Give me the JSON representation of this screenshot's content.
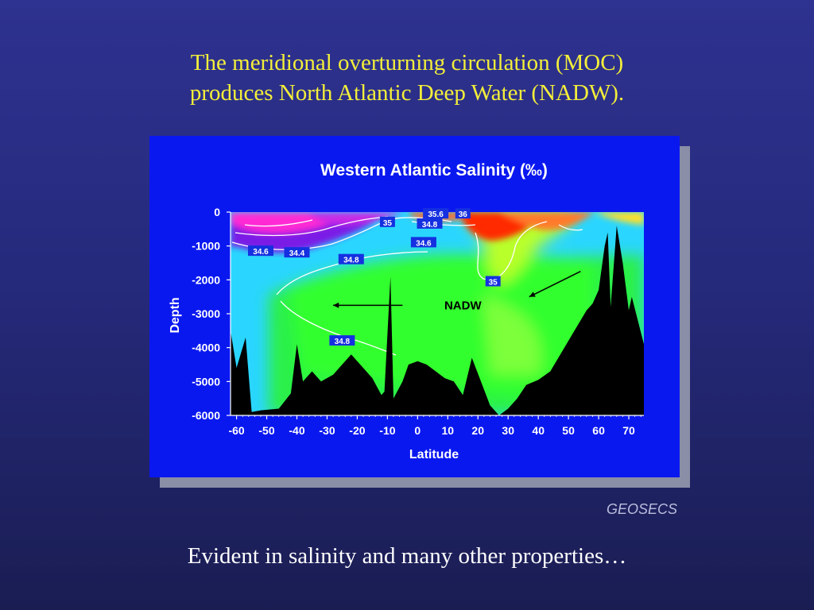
{
  "slide": {
    "title_line1": "The meridional overturning circulation (MOC)",
    "title_line2": "produces North Atlantic Deep Water (NADW).",
    "credit": "GEOSECS",
    "caption": "Evident in salinity and many other properties…"
  },
  "colors": {
    "background": "#2a2e86",
    "title_text": "#f3ee3a",
    "figure_panel": "#0a18f0",
    "seafloor": "#000000",
    "salinity_high": "#ff2a00",
    "salinity_mid": "#2aff2a",
    "salinity_low": "#9b22e6"
  },
  "chart_data": {
    "type": "heatmap",
    "title": "Western Atlantic Salinity (‰)",
    "xlabel": "Latitude",
    "ylabel": "Depth",
    "xlim": [
      -62,
      75
    ],
    "ylim": [
      -6000,
      0
    ],
    "x_ticks": [
      -60,
      -50,
      -40,
      -30,
      -20,
      -10,
      0,
      10,
      20,
      30,
      40,
      50,
      60,
      70
    ],
    "y_ticks": [
      0,
      -1000,
      -2000,
      -3000,
      -4000,
      -5000,
      -6000
    ],
    "grid": false,
    "contour_labels": [
      {
        "value": "35",
        "lat": -10,
        "depth": -300
      },
      {
        "value": "34.8",
        "lat": 4,
        "depth": -350
      },
      {
        "value": "34.6",
        "lat": 2,
        "depth": -900
      },
      {
        "value": "34.6",
        "lat": -52,
        "depth": -1150
      },
      {
        "value": "34.4",
        "lat": -40,
        "depth": -1200
      },
      {
        "value": "34.8",
        "lat": -22,
        "depth": -1400
      },
      {
        "value": "35",
        "lat": 25,
        "depth": -2050
      },
      {
        "value": "34.8",
        "lat": -25,
        "depth": -3800
      },
      {
        "value": "35.6",
        "lat": 6,
        "depth": -50
      },
      {
        "value": "36",
        "lat": 15,
        "depth": -50
      }
    ],
    "annotations": [
      {
        "text": "NADW",
        "lat": 15,
        "depth": -2750
      }
    ],
    "arrows": [
      {
        "from_lat": -5,
        "from_depth": -2750,
        "to_lat": -28,
        "to_depth": -2750
      },
      {
        "from_lat": 54,
        "from_depth": -1750,
        "to_lat": 37,
        "to_depth": -2500
      }
    ],
    "bathymetry": [
      [
        -62,
        -3500
      ],
      [
        -60,
        -4600
      ],
      [
        -57,
        -3700
      ],
      [
        -55,
        -5900
      ],
      [
        -52,
        -5850
      ],
      [
        -46,
        -5800
      ],
      [
        -42,
        -5350
      ],
      [
        -40,
        -3900
      ],
      [
        -38,
        -5000
      ],
      [
        -35,
        -4700
      ],
      [
        -32,
        -5000
      ],
      [
        -28,
        -4800
      ],
      [
        -25,
        -4500
      ],
      [
        -22,
        -4200
      ],
      [
        -19,
        -4500
      ],
      [
        -15,
        -4900
      ],
      [
        -12,
        -5400
      ],
      [
        -11,
        -5300
      ],
      [
        -9,
        -1900
      ],
      [
        -8,
        -5500
      ],
      [
        -5,
        -5000
      ],
      [
        -3,
        -4500
      ],
      [
        0,
        -4400
      ],
      [
        3,
        -4500
      ],
      [
        6,
        -4700
      ],
      [
        9,
        -4900
      ],
      [
        12,
        -5000
      ],
      [
        15,
        -5400
      ],
      [
        18,
        -4300
      ],
      [
        21,
        -5000
      ],
      [
        24,
        -5700
      ],
      [
        27,
        -6000
      ],
      [
        30,
        -5800
      ],
      [
        33,
        -5500
      ],
      [
        36,
        -5100
      ],
      [
        40,
        -4950
      ],
      [
        44,
        -4700
      ],
      [
        48,
        -4100
      ],
      [
        52,
        -3500
      ],
      [
        54,
        -3200
      ],
      [
        56,
        -2900
      ],
      [
        58,
        -2700
      ],
      [
        60,
        -2300
      ],
      [
        62,
        -1000
      ],
      [
        63,
        -600
      ],
      [
        64,
        -2800
      ],
      [
        66,
        -400
      ],
      [
        68,
        -1500
      ],
      [
        70,
        -2900
      ],
      [
        71,
        -2500
      ],
      [
        73,
        -3200
      ],
      [
        75,
        -3900
      ]
    ]
  }
}
